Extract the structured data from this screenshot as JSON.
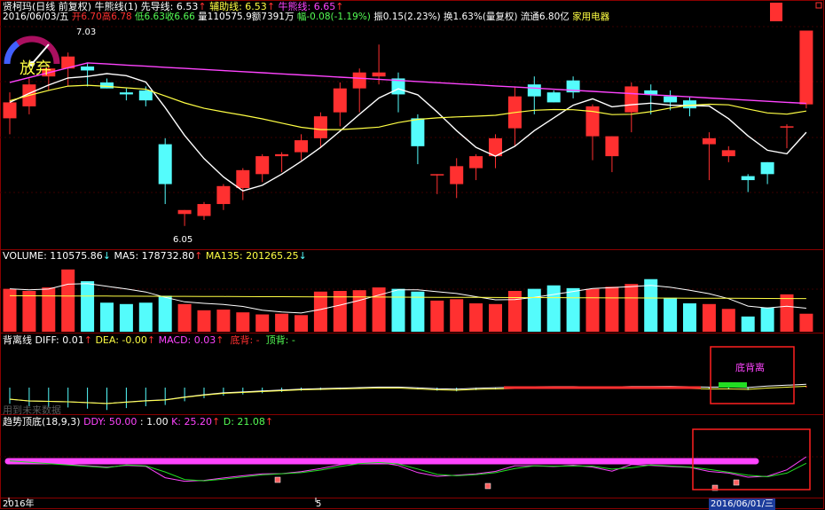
{
  "header": {
    "title": "贤柯玛(日线 前复权)",
    "indicator": "牛熊线(1)",
    "lead_label": "先导线: 6.53",
    "aux_label": "辅助线: 6.53",
    "bull_label": "牛熊线: 6.65",
    "date": "2016/06/03/五",
    "open": "开6.70",
    "high": "高6.78",
    "low": "低6.63",
    "close": "收6.66",
    "volume": "量110575.9",
    "amount": "额7391万",
    "change": "幅-0.08(-1.19%)",
    "amplitude": "振0.15(2.23%)",
    "turnover": "换1.63%(量复权)",
    "float": "流通6.80亿",
    "sector": "家用电器"
  },
  "gauge": {
    "label": "放弃"
  },
  "annotations": {
    "price_high": "7.03",
    "price_low": "6.05",
    "macd_box": "底背离",
    "future_note": "用到未来数据"
  },
  "volume_header": {
    "vol": "VOLUME: 110575.86",
    "ma5": "MA5: 178732.80",
    "ma135": "MA135: 201265.25"
  },
  "macd_header": {
    "name": "背离线",
    "diff": "DIFF: 0.01",
    "dea": "DEA: -0.00",
    "macd": "MACD: 0.03",
    "bottom": "底背: -",
    "top": "顶背: -"
  },
  "kdj_header": {
    "name": "趋势顶底(18,9,3)",
    "ddy": "DDY: 50.00",
    "v": ": 1.00",
    "k": "K: 25.20",
    "d": "D: 21.08"
  },
  "xaxis": {
    "year": "2016年",
    "mid": "5",
    "last": "2016/06/01/三"
  },
  "colors": {
    "up": "#ff3030",
    "down": "#54fcfc",
    "white_ma": "#ffffff",
    "yellow_ma": "#ffff44",
    "magenta": "#ff44ff"
  },
  "chart_data": [
    {
      "type": "candlestick",
      "series_open": [
        6.59,
        6.65,
        6.8,
        6.84,
        6.85,
        6.77,
        6.72,
        6.73,
        6.46,
        6.11,
        6.1,
        6.16,
        6.24,
        6.31,
        6.4,
        6.42,
        6.49,
        6.62,
        6.74,
        6.8,
        6.79,
        6.59,
        6.31,
        6.26,
        6.34,
        6.4,
        6.54,
        6.76,
        6.72,
        6.78,
        6.5,
        6.4,
        6.62,
        6.73,
        6.7,
        6.68,
        6.46,
        6.4,
        6.3,
        6.37,
        6.55,
        6.66
      ],
      "series_close": [
        6.67,
        6.76,
        6.84,
        6.9,
        6.83,
        6.74,
        6.71,
        6.68,
        6.26,
        6.13,
        6.16,
        6.25,
        6.33,
        6.4,
        6.41,
        6.48,
        6.6,
        6.74,
        6.82,
        6.82,
        6.71,
        6.45,
        6.31,
        6.35,
        6.4,
        6.49,
        6.7,
        6.7,
        6.67,
        6.72,
        6.65,
        6.5,
        6.75,
        6.71,
        6.67,
        6.64,
        6.49,
        6.43,
        6.28,
        6.31,
        6.55,
        7.03
      ],
      "series_high": [
        6.72,
        6.79,
        6.86,
        6.92,
        6.87,
        6.79,
        6.74,
        6.75,
        6.49,
        6.13,
        6.17,
        6.26,
        6.34,
        6.41,
        6.42,
        6.51,
        6.62,
        6.77,
        6.84,
        6.96,
        6.82,
        6.61,
        6.31,
        6.39,
        6.41,
        6.51,
        6.75,
        6.8,
        6.73,
        6.8,
        6.66,
        6.5,
        6.77,
        6.76,
        6.73,
        6.7,
        6.52,
        6.45,
        6.31,
        6.37,
        6.56,
        7.03
      ],
      "series_low": [
        6.51,
        6.61,
        6.73,
        6.75,
        6.75,
        6.74,
        6.68,
        6.65,
        6.16,
        6.05,
        6.08,
        6.13,
        6.18,
        6.27,
        6.32,
        6.38,
        6.44,
        6.55,
        6.62,
        6.76,
        6.62,
        6.36,
        6.21,
        6.19,
        6.28,
        6.34,
        6.45,
        6.61,
        6.67,
        6.69,
        6.38,
        6.32,
        6.52,
        6.61,
        6.63,
        6.6,
        6.28,
        6.37,
        6.22,
        6.26,
        6.44,
        6.64
      ],
      "ylim": [
        6.0,
        7.05
      ]
    },
    {
      "type": "bar",
      "name": "volume",
      "values": [
        0.62,
        0.59,
        0.64,
        0.9,
        0.73,
        0.42,
        0.4,
        0.42,
        0.52,
        0.4,
        0.31,
        0.32,
        0.28,
        0.25,
        0.26,
        0.24,
        0.58,
        0.59,
        0.6,
        0.64,
        0.62,
        0.58,
        0.45,
        0.47,
        0.41,
        0.4,
        0.59,
        0.62,
        0.67,
        0.63,
        0.62,
        0.65,
        0.69,
        0.76,
        0.49,
        0.41,
        0.4,
        0.33,
        0.22,
        0.35,
        0.54,
        0.26
      ],
      "ylim": [
        0,
        1
      ]
    },
    {
      "type": "bar",
      "name": "macd",
      "values": [
        -0.26,
        -0.3,
        -0.31,
        -0.32,
        -0.34,
        -0.36,
        -0.33,
        -0.3,
        -0.28,
        -0.22,
        -0.17,
        -0.13,
        -0.11,
        -0.09,
        -0.07,
        -0.05,
        -0.04,
        -0.03,
        -0.02,
        -0.01,
        -0.01,
        -0.03,
        -0.05,
        -0.06,
        -0.04,
        -0.03,
        -0.02,
        -0.01,
        -0.01,
        -0.01,
        -0.02,
        -0.02,
        -0.01,
        -0.01,
        -0.01,
        -0.02,
        -0.03,
        -0.03,
        -0.04,
        -0.01,
        0.01,
        0.03
      ],
      "ylim": [
        -0.4,
        0.4
      ]
    }
  ]
}
